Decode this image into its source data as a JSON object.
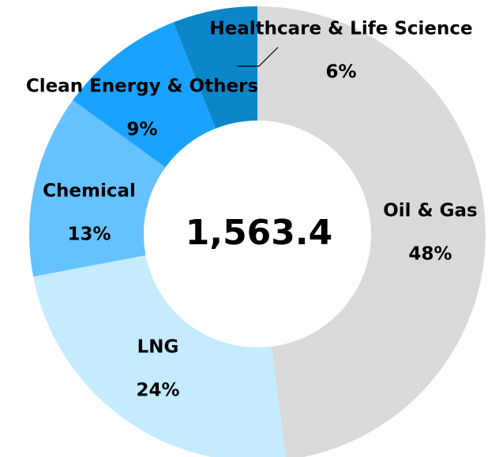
{
  "chart_data": {
    "type": "donut",
    "categories": [
      "Oil & Gas",
      "LNG",
      "Chemical",
      "Clean Energy & Others",
      "Healthcare & Life Science"
    ],
    "values": [
      48,
      24,
      13,
      9,
      6
    ],
    "value_labels": [
      "48%",
      "24%",
      "13%",
      "9%",
      "6%"
    ],
    "colors": [
      "#d9d9d9",
      "#c4ebff",
      "#66c1ff",
      "#19a3ff",
      "#0b86c8"
    ],
    "center_label": "1,563.4"
  }
}
